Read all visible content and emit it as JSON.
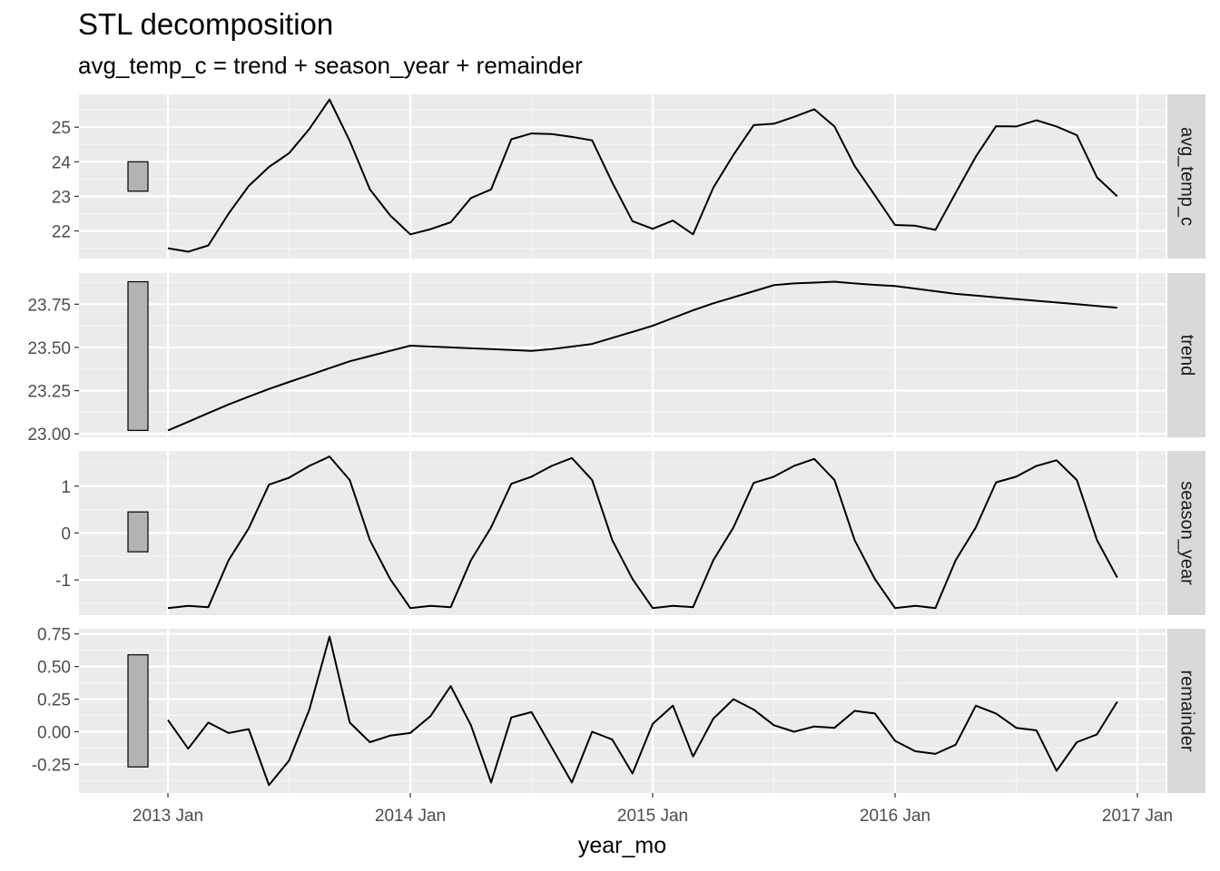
{
  "chart_data": {
    "type": "line",
    "title": "STL decomposition",
    "subtitle": "avg_temp_c = trend + season_year + remainder",
    "xlabel": "year_mo",
    "x_start": "2013 Jan",
    "x_ticks": [
      "2013 Jan",
      "2014 Jan",
      "2015 Jan",
      "2016 Jan",
      "2017 Jan"
    ],
    "x_range_months": [
      -3,
      51
    ],
    "grid": true,
    "panels": [
      {
        "name": "avg_temp_c",
        "yticks": [
          22,
          23,
          24,
          25
        ],
        "ytick_labels": [
          "22",
          "23",
          "24",
          "25"
        ],
        "ylim": [
          21.2,
          25.95
        ],
        "scale_bar": [
          23.15,
          24.0
        ],
        "values": [
          21.5,
          21.4,
          21.58,
          22.5,
          23.3,
          23.85,
          24.25,
          24.95,
          25.8,
          24.6,
          23.2,
          22.45,
          21.9,
          22.05,
          22.25,
          22.95,
          23.2,
          24.65,
          24.82,
          24.8,
          24.72,
          24.62,
          23.4,
          22.28,
          22.06,
          22.3,
          21.9,
          23.25,
          24.2,
          25.06,
          25.1,
          25.3,
          25.52,
          25.02,
          23.88,
          23.03,
          22.17,
          22.15,
          22.03,
          23.1,
          24.15,
          25.03,
          25.02,
          25.2,
          25.02,
          24.77,
          23.55,
          23.0
        ]
      },
      {
        "name": "trend",
        "yticks": [
          23.0,
          23.25,
          23.5,
          23.75
        ],
        "ytick_labels": [
          "23.00",
          "23.25",
          "23.50",
          "23.75"
        ],
        "ylim": [
          22.98,
          23.93
        ],
        "scale_bar": [
          23.02,
          23.88
        ],
        "values": [
          23.02,
          23.07,
          23.12,
          23.17,
          23.215,
          23.26,
          23.3,
          23.34,
          23.38,
          23.42,
          23.45,
          23.48,
          23.51,
          23.505,
          23.5,
          23.495,
          23.49,
          23.485,
          23.48,
          23.49,
          23.505,
          23.52,
          23.555,
          23.59,
          23.625,
          23.67,
          23.715,
          23.755,
          23.79,
          23.825,
          23.86,
          23.87,
          23.875,
          23.88,
          23.87,
          23.862,
          23.855,
          23.84,
          23.825,
          23.81,
          23.8,
          23.79,
          23.78,
          23.77,
          23.76,
          23.75,
          23.74,
          23.73
        ]
      },
      {
        "name": "season_year",
        "yticks": [
          -1,
          0,
          1
        ],
        "ytick_labels": [
          "-1",
          "0",
          "1"
        ],
        "ylim": [
          -1.75,
          1.75
        ],
        "scale_bar": [
          -0.4,
          0.45
        ],
        "values": [
          -1.6,
          -1.55,
          -1.58,
          -0.58,
          0.1,
          1.03,
          1.18,
          1.43,
          1.63,
          1.13,
          -0.15,
          -0.98,
          -1.6,
          -1.55,
          -1.58,
          -0.58,
          0.12,
          1.05,
          1.2,
          1.43,
          1.6,
          1.13,
          -0.15,
          -0.98,
          -1.6,
          -1.55,
          -1.58,
          -0.58,
          0.12,
          1.07,
          1.2,
          1.43,
          1.58,
          1.13,
          -0.15,
          -0.98,
          -1.6,
          -1.55,
          -1.6,
          -0.58,
          0.12,
          1.08,
          1.2,
          1.43,
          1.55,
          1.13,
          -0.15,
          -0.95
        ]
      },
      {
        "name": "remainder",
        "yticks": [
          -0.25,
          0.0,
          0.25,
          0.5,
          0.75
        ],
        "ytick_labels": [
          "-0.25",
          "0.00",
          "0.25",
          "0.50",
          "0.75"
        ],
        "ylim": [
          -0.47,
          0.79
        ],
        "scale_bar": [
          -0.27,
          0.59
        ],
        "values": [
          0.09,
          -0.13,
          0.07,
          -0.01,
          0.02,
          -0.41,
          -0.22,
          0.17,
          0.73,
          0.07,
          -0.08,
          -0.03,
          -0.01,
          0.12,
          0.35,
          0.05,
          -0.39,
          0.11,
          0.15,
          -0.12,
          -0.39,
          0.0,
          -0.06,
          -0.32,
          0.06,
          0.2,
          -0.19,
          0.1,
          0.25,
          0.17,
          0.05,
          0.0,
          0.04,
          0.03,
          0.16,
          0.14,
          -0.07,
          -0.15,
          -0.17,
          -0.1,
          0.2,
          0.14,
          0.03,
          0.01,
          -0.3,
          -0.08,
          -0.02,
          0.23
        ]
      }
    ]
  }
}
